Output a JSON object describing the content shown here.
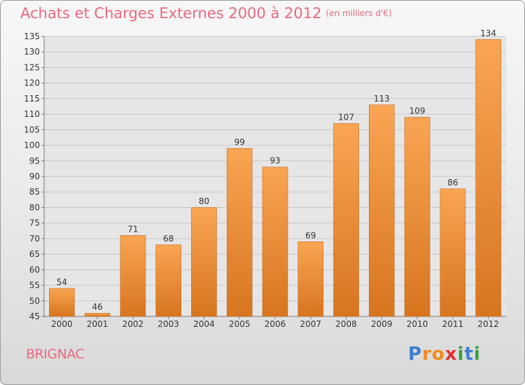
{
  "title": "Achats et Charges Externes 2000 à 2012",
  "subtitle": "(en milliers d'€)",
  "commune": "BRIGNAC",
  "logo": {
    "letters": [
      "P",
      "r",
      "o",
      "x",
      "i",
      "t",
      "i"
    ],
    "colors": [
      "#3a7fd0",
      "#f08a1c",
      "#f08a1c",
      "#e03030",
      "#3aa040",
      "#3a7fd0",
      "#3aa040"
    ]
  },
  "colors": {
    "bar_light": "#f9a552",
    "bar_dark": "#d8751f",
    "title": "#e86a7e"
  },
  "chart_data": {
    "type": "bar",
    "title": "Achats et Charges Externes 2000 à 2012",
    "subtitle": "(en milliers d'€)",
    "categories": [
      "2000",
      "2001",
      "2002",
      "2003",
      "2004",
      "2005",
      "2006",
      "2007",
      "2008",
      "2009",
      "2010",
      "2011",
      "2012"
    ],
    "values": [
      54,
      46,
      71,
      68,
      80,
      99,
      93,
      69,
      107,
      113,
      109,
      86,
      134
    ],
    "ylim": [
      45,
      135
    ],
    "yticks": [
      45,
      50,
      55,
      60,
      65,
      70,
      75,
      80,
      85,
      90,
      95,
      100,
      105,
      110,
      115,
      120,
      125,
      130,
      135
    ],
    "grid": true,
    "legend": "none"
  }
}
